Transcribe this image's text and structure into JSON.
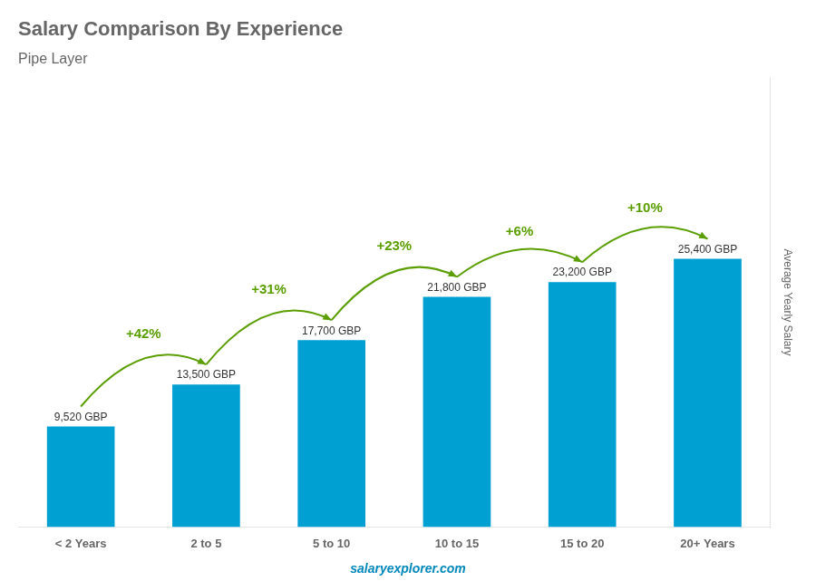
{
  "chart_data": {
    "type": "bar",
    "title": "Salary Comparison By Experience",
    "subtitle": "Pipe Layer",
    "ylabel": "Average Yearly Salary",
    "categories": [
      "< 2 Years",
      "2 to 5",
      "5 to 10",
      "10 to 15",
      "15 to 20",
      "20+ Years"
    ],
    "values": [
      9520,
      13500,
      17700,
      21800,
      23200,
      25400
    ],
    "value_labels": [
      "9,520 GBP",
      "13,500 GBP",
      "17,700 GBP",
      "21,800 GBP",
      "23,200 GBP",
      "25,400 GBP"
    ],
    "data_labels": true,
    "color": "#00a0d2",
    "ylim": [
      0,
      42560
    ],
    "tick_labels": "x",
    "grid": false,
    "annotations": [
      {
        "text": "+42%",
        "between": [
          "< 2 Years",
          "2 to 5"
        ]
      },
      {
        "text": "+31%",
        "between": [
          "2 to 5",
          "5 to 10"
        ]
      },
      {
        "text": "+23%",
        "between": [
          "5 to 10",
          "10 to 15"
        ]
      },
      {
        "text": "+6%",
        "between": [
          "10 to 15",
          "15 to 20"
        ]
      },
      {
        "text": "+10%",
        "between": [
          "15 to 20",
          "20+ Years"
        ]
      },
      {
        "text": "salaryexplorer.com"
      }
    ]
  }
}
